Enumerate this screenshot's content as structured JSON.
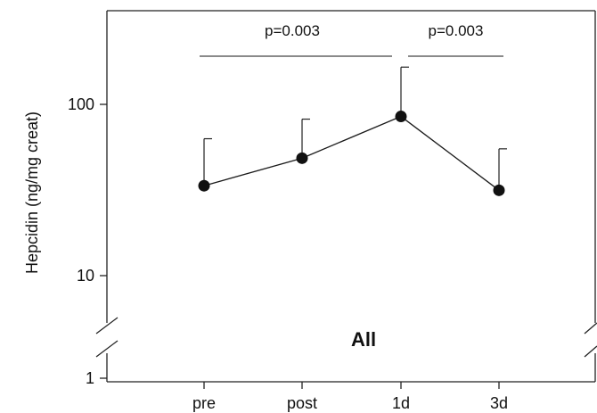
{
  "chart_data": {
    "type": "line",
    "title": "",
    "xlabel": "",
    "ylabel": "Hepcidin (ng/mg creat)",
    "y_scale": "log",
    "y_axis_break": true,
    "ylim": [
      1,
      350
    ],
    "y_ticks": [
      {
        "value": 1,
        "label": "1"
      },
      {
        "value": 10,
        "label": "10"
      },
      {
        "value": 100,
        "label": "100"
      }
    ],
    "categories": [
      "pre",
      "post",
      "1d",
      "3d"
    ],
    "series": [
      {
        "values": [
          33.5,
          48.5,
          85,
          31.5
        ],
        "error_upper": [
          63,
          82,
          165,
          55
        ]
      }
    ],
    "annotations": [
      {
        "text": "p=0.003",
        "from": "pre",
        "to": "1d"
      },
      {
        "text": "p=0.003",
        "from": "1d",
        "to": "3d"
      }
    ],
    "panel_label": "All",
    "grid": false,
    "marker": "filled-circle",
    "line_color": "#1a1a1a"
  }
}
